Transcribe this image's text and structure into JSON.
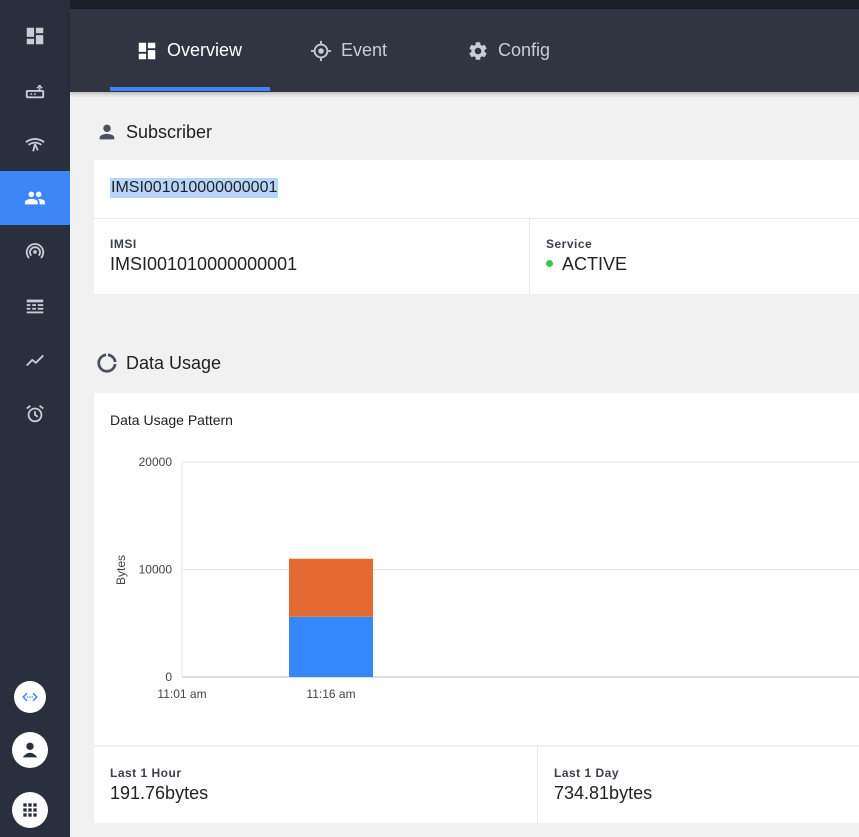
{
  "sidebar": {
    "items": [
      {
        "icon": "dashboard-icon",
        "active": false
      },
      {
        "icon": "router-icon",
        "active": false
      },
      {
        "icon": "wifi-tethering-icon",
        "active": false
      },
      {
        "icon": "people-icon",
        "active": true
      },
      {
        "icon": "signal-icon",
        "active": false
      },
      {
        "icon": "table-icon",
        "active": false
      },
      {
        "icon": "trend-icon",
        "active": false
      },
      {
        "icon": "alarm-icon",
        "active": false
      }
    ],
    "bottom": [
      {
        "icon": "code-network-icon"
      },
      {
        "icon": "user-account-icon"
      },
      {
        "icon": "apps-grid-icon"
      }
    ],
    "accent": "#3c86f7"
  },
  "tabs": [
    {
      "label": "Overview",
      "icon": "overview-icon",
      "active": true
    },
    {
      "label": "Event",
      "icon": "event-target-icon",
      "active": false
    },
    {
      "label": "Config",
      "icon": "gear-icon",
      "active": false
    }
  ],
  "subscriber": {
    "title": "Subscriber",
    "selected_id": "IMSI001010000000001",
    "imsi_label": "IMSI",
    "imsi_value": "IMSI001010000000001",
    "service_label": "Service",
    "service_value": "ACTIVE",
    "service_color": "#34c759"
  },
  "usage": {
    "title": "Data Usage",
    "last_hour_label": "Last 1 Hour",
    "last_hour_value": "191.76bytes",
    "last_day_label": "Last 1 Day",
    "last_day_value": "734.81bytes"
  },
  "chart_data": {
    "type": "bar",
    "title": "Data Usage Pattern",
    "ylabel": "Bytes",
    "xlabel": "",
    "ylim": [
      0,
      20000
    ],
    "yticks": [
      0,
      10000,
      20000
    ],
    "categories": [
      "11:01 am",
      "11:16 am"
    ],
    "stacked": true,
    "grid": true,
    "series": [
      {
        "color": "#3587fc",
        "values": [
          0,
          5600
        ]
      },
      {
        "color": "#e46a32",
        "values": [
          0,
          5400
        ]
      }
    ]
  }
}
